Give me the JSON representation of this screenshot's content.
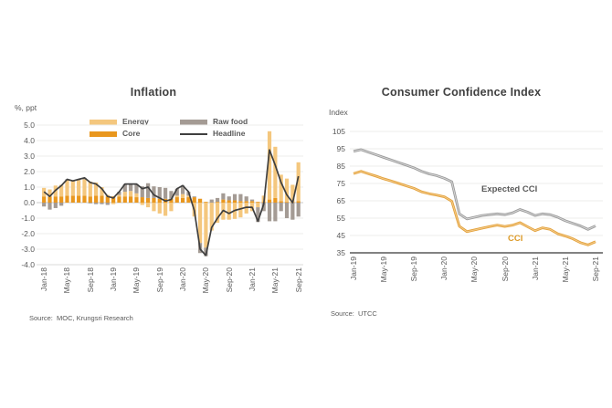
{
  "chart_data": [
    {
      "id": "inflation",
      "type": "bar",
      "subtype": "stacked-bars-with-line-overlay",
      "title": "Inflation",
      "ylabel": "%, ppt",
      "source": "Source:  MOC, Krungsri Research",
      "ylim": [
        -4,
        5
      ],
      "y_ticks": [
        "5.0",
        "4.0",
        "3.0",
        "2.0",
        "1.0",
        "0.0",
        "-1.0",
        "-2.0",
        "-3.0",
        "-4.0"
      ],
      "grid": true,
      "legend_position": "top-inside",
      "categories": [
        "Jan-18",
        "Feb-18",
        "Mar-18",
        "Apr-18",
        "May-18",
        "Jun-18",
        "Jul-18",
        "Aug-18",
        "Sep-18",
        "Oct-18",
        "Nov-18",
        "Dec-18",
        "Jan-19",
        "Feb-19",
        "Mar-19",
        "Apr-19",
        "May-19",
        "Jun-19",
        "Jul-19",
        "Aug-19",
        "Sep-19",
        "Oct-19",
        "Nov-19",
        "Dec-19",
        "Jan-20",
        "Feb-20",
        "Mar-20",
        "Apr-20",
        "May-20",
        "Jun-20",
        "Jul-20",
        "Aug-20",
        "Sep-20",
        "Oct-20",
        "Nov-20",
        "Dec-20",
        "Jan-21",
        "Feb-21",
        "Mar-21",
        "Apr-21",
        "May-21",
        "Jun-21",
        "Jul-21",
        "Aug-21",
        "Sep-21"
      ],
      "x_tick_labels": [
        "Jan-18",
        "May-18",
        "Sep-18",
        "Jan-19",
        "May-19",
        "Sep-19",
        "Jan-20",
        "May-20",
        "Sep-20",
        "Jan-21",
        "May-21",
        "Sep-21"
      ],
      "series": [
        {
          "name": "Core",
          "kind": "bar",
          "color": "#E9971E",
          "values": [
            0.4,
            0.4,
            0.4,
            0.4,
            0.45,
            0.45,
            0.45,
            0.45,
            0.4,
            0.45,
            0.45,
            0.4,
            0.4,
            0.4,
            0.4,
            0.4,
            0.35,
            0.35,
            0.3,
            0.3,
            0.25,
            0.25,
            0.25,
            0.35,
            0.3,
            0.35,
            0.35,
            0.25,
            0.05,
            0.0,
            0.05,
            0.2,
            0.15,
            0.15,
            0.1,
            0.1,
            0.1,
            0.05,
            0.05,
            0.2,
            0.3,
            0.1,
            0.05,
            0.05,
            0.1
          ]
        },
        {
          "name": "Energy",
          "kind": "bar",
          "color": "#F4C77E",
          "values": [
            0.55,
            0.45,
            0.7,
            0.75,
            1.0,
            0.95,
            1.0,
            1.05,
            0.95,
            0.85,
            0.55,
            0.1,
            -0.1,
            0.1,
            0.3,
            0.35,
            0.25,
            -0.15,
            -0.3,
            -0.55,
            -0.7,
            -0.85,
            -0.55,
            0.1,
            0.25,
            0.1,
            -0.9,
            -2.6,
            -2.9,
            -1.8,
            -1.3,
            -1.1,
            -1.1,
            -1.05,
            -0.95,
            -0.7,
            -0.55,
            -0.3,
            0.4,
            4.4,
            3.3,
            1.7,
            1.5,
            1.1,
            2.5
          ]
        },
        {
          "name": "Raw food",
          "kind": "bar",
          "color": "#A49B94",
          "values": [
            -0.25,
            -0.45,
            -0.35,
            -0.2,
            0.05,
            0.0,
            0.05,
            0.1,
            -0.05,
            -0.1,
            -0.1,
            -0.15,
            0.0,
            0.2,
            0.5,
            0.45,
            0.6,
            0.7,
            0.95,
            0.75,
            0.75,
            0.7,
            0.5,
            0.45,
            0.55,
            0.25,
            0.05,
            -0.65,
            -0.55,
            0.2,
            0.25,
            0.4,
            0.25,
            0.4,
            0.45,
            0.3,
            0.1,
            -0.95,
            -0.55,
            -1.2,
            -1.2,
            -0.55,
            -1.0,
            -1.1,
            -0.9
          ]
        },
        {
          "name": "Headline",
          "kind": "line",
          "color": "#3F3F3F",
          "values": [
            0.7,
            0.4,
            0.8,
            1.1,
            1.5,
            1.4,
            1.5,
            1.6,
            1.3,
            1.2,
            0.9,
            0.4,
            0.3,
            0.7,
            1.2,
            1.2,
            1.2,
            0.9,
            1.0,
            0.5,
            0.3,
            0.1,
            0.2,
            0.9,
            1.1,
            0.7,
            -0.5,
            -3.0,
            -3.4,
            -1.6,
            -1.0,
            -0.5,
            -0.7,
            -0.5,
            -0.4,
            -0.3,
            -0.3,
            -1.2,
            -0.1,
            3.4,
            2.4,
            1.3,
            0.5,
            0.0,
            1.7
          ]
        }
      ],
      "legend": [
        {
          "label": "Energy",
          "kind": "box",
          "color": "#F4C77E"
        },
        {
          "label": "Core",
          "kind": "box",
          "color": "#E9971E"
        },
        {
          "label": "Raw food",
          "kind": "box",
          "color": "#A49B94"
        },
        {
          "label": "Headline",
          "kind": "line",
          "color": "#3F3F3F"
        }
      ],
      "colors": {
        "grid": "#EDEDEB",
        "zero_line": "#C8C8C8",
        "bottom_line": "#DBDBD8"
      }
    },
    {
      "id": "cci",
      "type": "line",
      "title": "Consumer Confidence Index",
      "ylabel": "Index",
      "source": "Source:  UTCC",
      "ylim": [
        35,
        105
      ],
      "y_ticks": [
        "105",
        "95",
        "85",
        "75",
        "65",
        "55",
        "45",
        "35"
      ],
      "grid": true,
      "categories": [
        "Jan-19",
        "Feb-19",
        "Mar-19",
        "Apr-19",
        "May-19",
        "Jun-19",
        "Jul-19",
        "Aug-19",
        "Sep-19",
        "Oct-19",
        "Nov-19",
        "Dec-19",
        "Jan-20",
        "Feb-20",
        "Mar-20",
        "Apr-20",
        "May-20",
        "Jun-20",
        "Jul-20",
        "Aug-20",
        "Sep-20",
        "Oct-20",
        "Nov-20",
        "Dec-20",
        "Jan-21",
        "Feb-21",
        "Mar-21",
        "Apr-21",
        "May-21",
        "Jun-21",
        "Jul-21",
        "Aug-21",
        "Sep-21"
      ],
      "x_tick_labels": [
        "Jan-19",
        "May-19",
        "Sep-19",
        "Jan-20",
        "May-20",
        "Sep-20",
        "Jan-21",
        "May-21",
        "Sep-21"
      ],
      "series": [
        {
          "name": "Expected CCI",
          "kind": "line",
          "color": "#9C9C9C",
          "highlight": "#D9D9D9",
          "values": [
            93.5,
            94.5,
            93.0,
            91.5,
            90.0,
            88.5,
            87.0,
            85.5,
            84.0,
            82.0,
            80.5,
            79.5,
            78.0,
            76.0,
            57.5,
            54.5,
            55.5,
            56.5,
            57.0,
            57.5,
            57.0,
            58.0,
            60.0,
            58.5,
            56.5,
            57.5,
            57.0,
            55.5,
            53.5,
            52.0,
            50.5,
            48.5,
            50.5
          ]
        },
        {
          "name": "CCI",
          "kind": "line",
          "color": "#E4A23C",
          "highlight": "#F3CD90",
          "values": [
            80.7,
            82.0,
            80.6,
            79.2,
            77.7,
            76.4,
            75.0,
            73.6,
            72.2,
            70.2,
            69.1,
            68.3,
            67.3,
            64.8,
            50.3,
            47.2,
            48.2,
            49.2,
            50.1,
            51.0,
            50.2,
            50.9,
            52.4,
            50.1,
            47.8,
            49.4,
            48.5,
            46.0,
            44.7,
            43.1,
            40.9,
            39.6,
            41.4
          ]
        }
      ],
      "annotations": [
        {
          "text": "Expected CCI",
          "color": "#595959"
        },
        {
          "text": "CCI",
          "color": "#DC9A28"
        }
      ],
      "colors": {
        "grid": "#EDEDEB",
        "axis_line": "#595959"
      }
    }
  ]
}
